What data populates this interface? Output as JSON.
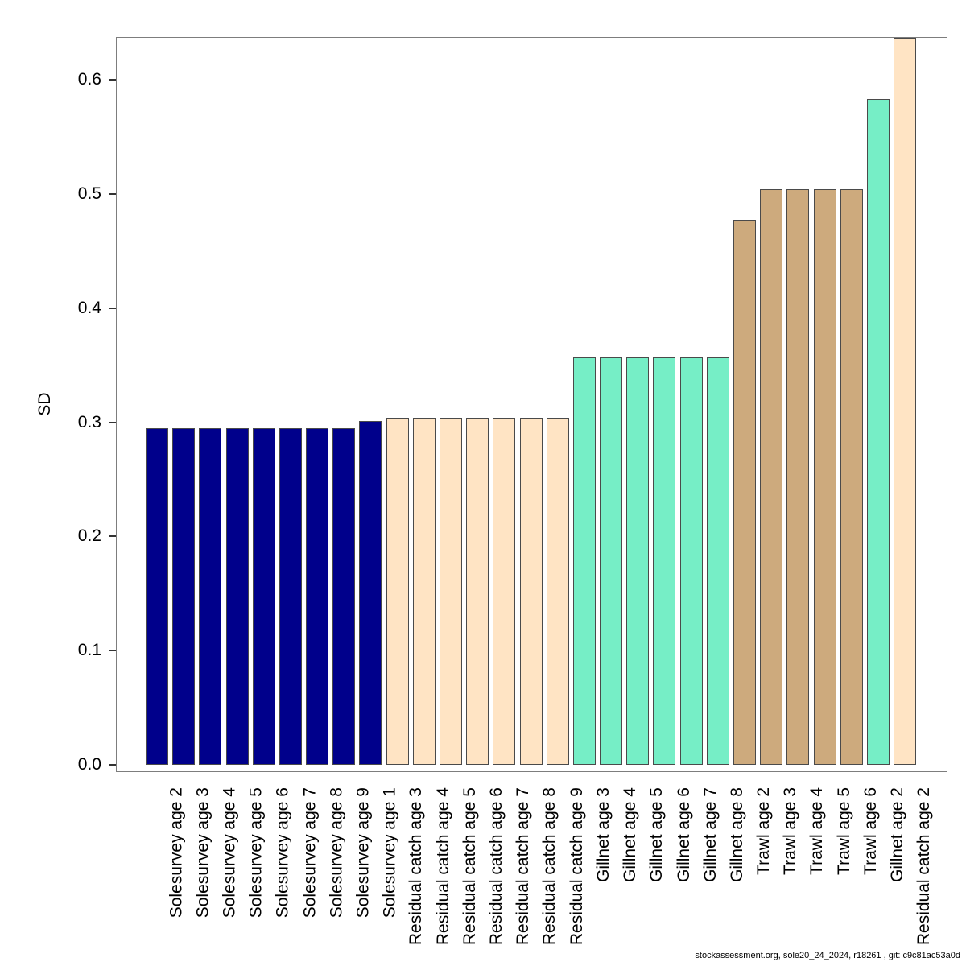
{
  "chart_data": {
    "type": "bar",
    "title": "",
    "xlabel": "",
    "ylabel": "SD",
    "ylim": [
      0,
      0.638
    ],
    "yticks": [
      0.0,
      0.1,
      0.2,
      0.3,
      0.4,
      0.5,
      0.6
    ],
    "ytick_labels": [
      "0.0",
      "0.1",
      "0.2",
      "0.3",
      "0.4",
      "0.5",
      "0.6"
    ],
    "grid": false,
    "legend": "none",
    "colors_by_group": {
      "Solesurvey": "#00008B",
      "Residual catch": "#FFE4C4",
      "Gillnet": "#76EEC6",
      "Trawl": "#CDAA7D"
    },
    "bars": [
      {
        "label": "Solesurvey age 2",
        "value": 0.295,
        "group": "Solesurvey",
        "color": "#00008B"
      },
      {
        "label": "Solesurvey age 3",
        "value": 0.295,
        "group": "Solesurvey",
        "color": "#00008B"
      },
      {
        "label": "Solesurvey age 4",
        "value": 0.295,
        "group": "Solesurvey",
        "color": "#00008B"
      },
      {
        "label": "Solesurvey age 5",
        "value": 0.295,
        "group": "Solesurvey",
        "color": "#00008B"
      },
      {
        "label": "Solesurvey age 6",
        "value": 0.295,
        "group": "Solesurvey",
        "color": "#00008B"
      },
      {
        "label": "Solesurvey age 7",
        "value": 0.295,
        "group": "Solesurvey",
        "color": "#00008B"
      },
      {
        "label": "Solesurvey age 8",
        "value": 0.295,
        "group": "Solesurvey",
        "color": "#00008B"
      },
      {
        "label": "Solesurvey age 9",
        "value": 0.295,
        "group": "Solesurvey",
        "color": "#00008B"
      },
      {
        "label": "Solesurvey age 1",
        "value": 0.301,
        "group": "Solesurvey",
        "color": "#00008B"
      },
      {
        "label": "Residual catch age 3",
        "value": 0.304,
        "group": "Residual catch",
        "color": "#FFE4C4"
      },
      {
        "label": "Residual catch age 4",
        "value": 0.304,
        "group": "Residual catch",
        "color": "#FFE4C4"
      },
      {
        "label": "Residual catch age 5",
        "value": 0.304,
        "group": "Residual catch",
        "color": "#FFE4C4"
      },
      {
        "label": "Residual catch age 6",
        "value": 0.304,
        "group": "Residual catch",
        "color": "#FFE4C4"
      },
      {
        "label": "Residual catch age 7",
        "value": 0.304,
        "group": "Residual catch",
        "color": "#FFE4C4"
      },
      {
        "label": "Residual catch age 8",
        "value": 0.304,
        "group": "Residual catch",
        "color": "#FFE4C4"
      },
      {
        "label": "Residual catch age 9",
        "value": 0.304,
        "group": "Residual catch",
        "color": "#FFE4C4"
      },
      {
        "label": "Gillnet age 3",
        "value": 0.357,
        "group": "Gillnet",
        "color": "#76EEC6"
      },
      {
        "label": "Gillnet age 4",
        "value": 0.357,
        "group": "Gillnet",
        "color": "#76EEC6"
      },
      {
        "label": "Gillnet age 5",
        "value": 0.357,
        "group": "Gillnet",
        "color": "#76EEC6"
      },
      {
        "label": "Gillnet age 6",
        "value": 0.357,
        "group": "Gillnet",
        "color": "#76EEC6"
      },
      {
        "label": "Gillnet age 7",
        "value": 0.357,
        "group": "Gillnet",
        "color": "#76EEC6"
      },
      {
        "label": "Gillnet age 8",
        "value": 0.357,
        "group": "Gillnet",
        "color": "#76EEC6"
      },
      {
        "label": "Trawl age 2",
        "value": 0.477,
        "group": "Trawl",
        "color": "#CDAA7D"
      },
      {
        "label": "Trawl age 3",
        "value": 0.504,
        "group": "Trawl",
        "color": "#CDAA7D"
      },
      {
        "label": "Trawl age 4",
        "value": 0.504,
        "group": "Trawl",
        "color": "#CDAA7D"
      },
      {
        "label": "Trawl age 5",
        "value": 0.504,
        "group": "Trawl",
        "color": "#CDAA7D"
      },
      {
        "label": "Trawl age 6",
        "value": 0.504,
        "group": "Trawl",
        "color": "#CDAA7D"
      },
      {
        "label": "Gillnet age 2",
        "value": 0.583,
        "group": "Gillnet",
        "color": "#76EEC6"
      },
      {
        "label": "Residual catch age 2",
        "value": 0.637,
        "group": "Residual catch",
        "color": "#FFE4C4"
      }
    ]
  },
  "footer": {
    "text": "stockassessment.org, sole20_24_2024, r18261 , git: c9c81ac53a0d"
  }
}
